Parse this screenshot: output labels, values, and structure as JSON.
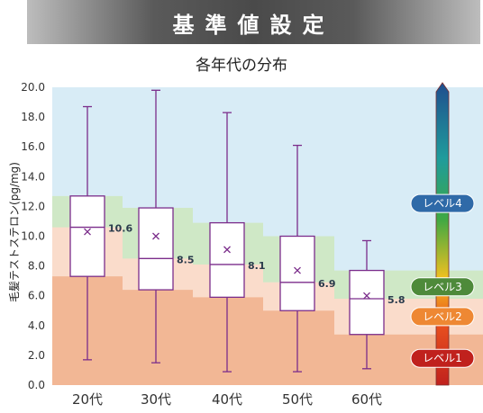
{
  "banner": {
    "title": "基準値設定"
  },
  "chart_data": {
    "type": "box",
    "title": "各年代の分布",
    "ylabel": "毛髪テストステロン(pg/mg)",
    "ylim": [
      0,
      20
    ],
    "yticks": [
      "0.0",
      "2.0",
      "4.0",
      "6.0",
      "8.0",
      "10.0",
      "12.0",
      "14.0",
      "16.0",
      "18.0",
      "20.0"
    ],
    "categories": [
      "20代",
      "30代",
      "40代",
      "50代",
      "60代"
    ],
    "boxes": [
      {
        "min": 1.7,
        "q1": 7.3,
        "median": 10.6,
        "q3": 12.7,
        "max": 18.7,
        "mean": 10.3,
        "label": "10.6"
      },
      {
        "min": 1.5,
        "q1": 6.4,
        "median": 8.5,
        "q3": 11.9,
        "max": 19.8,
        "mean": 10.0,
        "label": "8.5"
      },
      {
        "min": 0.9,
        "q1": 5.9,
        "median": 8.1,
        "q3": 10.9,
        "max": 18.3,
        "mean": 9.1,
        "label": "8.1"
      },
      {
        "min": 0.9,
        "q1": 5.0,
        "median": 6.9,
        "q3": 10.0,
        "max": 16.1,
        "mean": 7.7,
        "label": "6.9"
      },
      {
        "min": 1.1,
        "q1": 3.4,
        "median": 5.8,
        "q3": 7.7,
        "max": 9.7,
        "mean": 6.0,
        "label": "5.8"
      }
    ],
    "bands": [
      {
        "level": "レベル1",
        "upper": [
          7.3,
          6.4,
          5.9,
          5.0,
          3.4,
          3.4
        ]
      },
      {
        "level": "レベル2",
        "upper": [
          10.6,
          8.5,
          8.1,
          6.9,
          5.8,
          5.8
        ]
      },
      {
        "level": "レベル3",
        "upper": [
          12.7,
          11.9,
          10.9,
          10.0,
          7.7,
          7.7
        ]
      },
      {
        "level": "レベル4",
        "upper": [
          20.0,
          20.0,
          20.0,
          20.0,
          20.0,
          20.0
        ]
      }
    ],
    "band_colors": [
      "#f2b795",
      "#fadccb",
      "#cfe8c6",
      "#d8ecf6"
    ],
    "levels": [
      {
        "name": "レベル4",
        "color": "#2f6aa8",
        "y": 12.2
      },
      {
        "name": "レベル3",
        "color": "#4e8a3a",
        "y": 6.6
      },
      {
        "name": "レベル2",
        "color": "#ee8833",
        "y": 4.6
      },
      {
        "name": "レベル1",
        "color": "#c0211d",
        "y": 1.8
      }
    ],
    "box_color": "#7b2d8b",
    "grid": false
  }
}
